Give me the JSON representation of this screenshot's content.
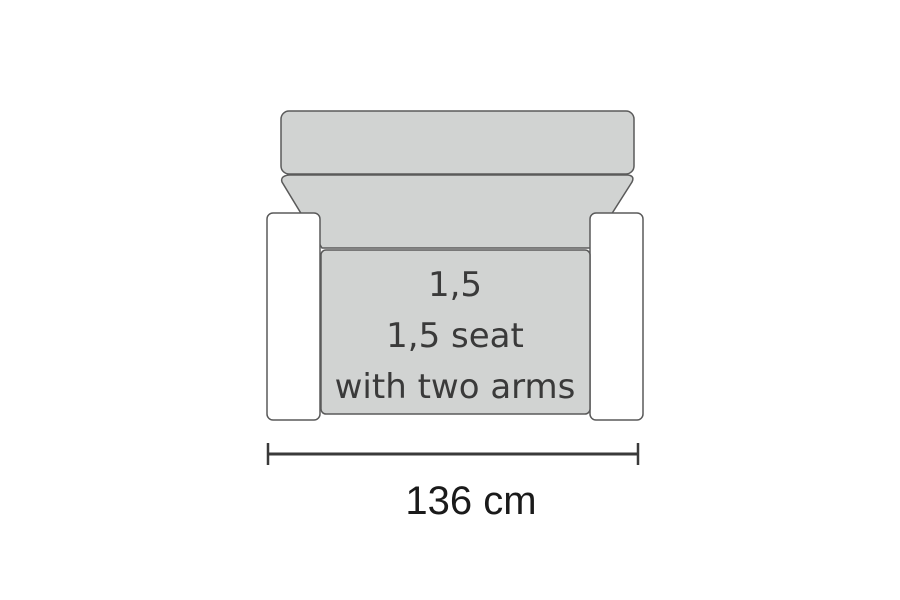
{
  "seat": {
    "code": "1,5",
    "name": "1,5 seat",
    "description": "with two arms"
  },
  "dimension": {
    "width_label": "136 cm"
  },
  "colors": {
    "cushion_fill": "#d1d3d2",
    "arm_fill": "#ffffff",
    "outline": "#5a5a5a",
    "dimension_line": "#3a3a3a"
  }
}
